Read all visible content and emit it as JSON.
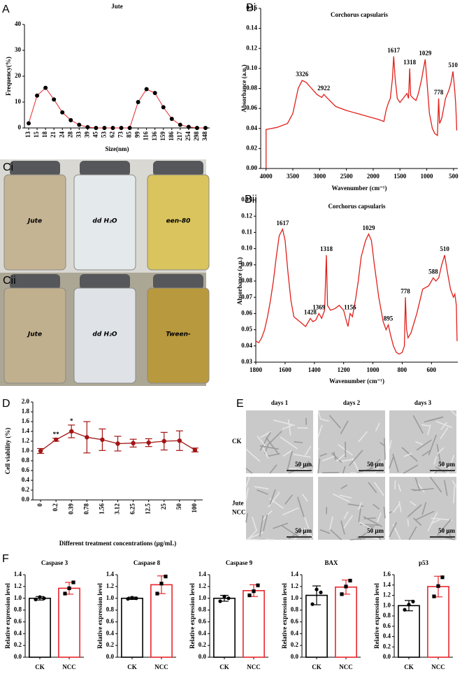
{
  "chart_data": [
    {
      "type": "line",
      "panel": "A",
      "title": "Jute",
      "xlabel": "Size(nm)",
      "ylabel": "Frequency(%)",
      "categories": [
        "13",
        "15",
        "18",
        "21",
        "24",
        "28",
        "33",
        "39",
        "45",
        "53",
        "62",
        "73",
        "85",
        "99",
        "116",
        "136",
        "159",
        "186",
        "217",
        "254",
        "298",
        "348"
      ],
      "values": [
        1.8,
        12.5,
        15.5,
        11,
        6,
        3,
        1.2,
        0.3,
        0,
        0,
        0,
        0,
        0,
        10,
        15,
        13.5,
        8,
        3.5,
        1.2,
        0.4,
        0,
        0
      ],
      "color": "#e8262b",
      "marker_color": "#000000",
      "ylim": [
        0,
        40
      ],
      "yticks": [
        0,
        10,
        20,
        30,
        40
      ]
    },
    {
      "type": "line",
      "panel": "Bi",
      "title": "Corchorus capsularis",
      "xlabel": "Wavenumber (cm⁻¹)",
      "ylabel": "Absorbance (a.u.)",
      "x": [
        4000,
        4000,
        3800,
        3600,
        3500,
        3400,
        3326,
        3250,
        3150,
        3050,
        2960,
        2922,
        2850,
        2700,
        2500,
        2300,
        2100,
        1900,
        1800,
        1760,
        1720,
        1680,
        1640,
        1617,
        1590,
        1550,
        1500,
        1428,
        1369,
        1340,
        1318,
        1300,
        1250,
        1200,
        1156,
        1100,
        1060,
        1029,
        1000,
        950,
        895,
        850,
        800,
        778,
        760,
        720,
        650,
        588,
        550,
        510,
        480,
        460,
        450,
        440
      ],
      "values": [
        0,
        0.039,
        0.041,
        0.045,
        0.055,
        0.08,
        0.088,
        0.086,
        0.08,
        0.074,
        0.071,
        0.074,
        0.07,
        0.062,
        0.058,
        0.055,
        0.052,
        0.049,
        0.047,
        0.058,
        0.065,
        0.07,
        0.09,
        0.112,
        0.09,
        0.07,
        0.066,
        0.071,
        0.075,
        0.07,
        0.1,
        0.073,
        0.07,
        0.068,
        0.075,
        0.088,
        0.1,
        0.109,
        0.09,
        0.055,
        0.04,
        0.035,
        0.033,
        0.07,
        0.045,
        0.05,
        0.07,
        0.078,
        0.085,
        0.097,
        0.08,
        0.065,
        0.053,
        0.038
      ],
      "color": "#e0201b",
      "xlim": [
        4100,
        420
      ],
      "xticks": [
        4000,
        3500,
        3000,
        2500,
        2000,
        1500,
        1000,
        500
      ],
      "ylim": [
        0,
        0.16
      ],
      "yticks": [
        {
          "value": 0,
          "label": "0.00"
        },
        0.02,
        0.04,
        0.06,
        0.08,
        {
          "value": 0.1,
          "label": "0.10"
        },
        0.12,
        0.14,
        0.16
      ],
      "annotations": [
        {
          "text": "3326",
          "x": 3326,
          "y": 0.088
        },
        {
          "text": "2922",
          "x": 2922,
          "y": 0.074
        },
        {
          "text": "1617",
          "x": 1617,
          "y": 0.112
        },
        {
          "text": "1318",
          "x": 1318,
          "y": 0.1
        },
        {
          "text": "1029",
          "x": 1029,
          "y": 0.109
        },
        {
          "text": "778",
          "x": 778,
          "y": 0.07
        },
        {
          "text": "510",
          "x": 510,
          "y": 0.097
        }
      ]
    },
    {
      "type": "line",
      "panel": "Bii",
      "title": "Corchorus capsularis",
      "xlabel": "Wavenumber (cm⁻¹)",
      "ylabel": "Absorbance (a.u.)",
      "x": [
        1800,
        1780,
        1760,
        1740,
        1720,
        1700,
        1680,
        1660,
        1640,
        1617,
        1600,
        1580,
        1560,
        1540,
        1500,
        1460,
        1440,
        1428,
        1410,
        1390,
        1369,
        1350,
        1330,
        1318,
        1310,
        1290,
        1260,
        1230,
        1200,
        1180,
        1170,
        1156,
        1140,
        1120,
        1100,
        1080,
        1050,
        1029,
        1010,
        990,
        960,
        930,
        910,
        895,
        880,
        860,
        840,
        820,
        800,
        785,
        778,
        770,
        760,
        740,
        700,
        660,
        620,
        600,
        588,
        570,
        550,
        530,
        510,
        490,
        470,
        450,
        440,
        430,
        425
      ],
      "values": [
        0.043,
        0.042,
        0.045,
        0.05,
        0.058,
        0.068,
        0.08,
        0.095,
        0.108,
        0.112,
        0.105,
        0.085,
        0.068,
        0.058,
        0.055,
        0.052,
        0.055,
        0.057,
        0.055,
        0.056,
        0.06,
        0.057,
        0.062,
        0.096,
        0.065,
        0.062,
        0.063,
        0.065,
        0.062,
        0.055,
        0.052,
        0.06,
        0.058,
        0.068,
        0.08,
        0.095,
        0.105,
        0.109,
        0.105,
        0.09,
        0.07,
        0.055,
        0.05,
        0.053,
        0.047,
        0.04,
        0.036,
        0.035,
        0.036,
        0.04,
        0.07,
        0.05,
        0.045,
        0.048,
        0.06,
        0.075,
        0.077,
        0.08,
        0.082,
        0.08,
        0.082,
        0.09,
        0.096,
        0.085,
        0.075,
        0.07,
        0.072,
        0.065,
        0.043
      ],
      "color": "#e0201b",
      "xlim": [
        1800,
        420
      ],
      "xticks": [
        1800,
        1600,
        1400,
        1200,
        1000,
        800,
        600
      ],
      "ylim": [
        0.03,
        0.13
      ],
      "yticks": [
        0.03,
        0.04,
        0.05,
        0.06,
        0.07,
        0.08,
        0.09,
        {
          "value": 0.1,
          "label": "0.10"
        },
        0.11,
        0.12,
        0.13
      ],
      "annotations": [
        {
          "text": "1617",
          "x": 1617,
          "y": 0.112
        },
        {
          "text": "1428",
          "x": 1428,
          "y": 0.057
        },
        {
          "text": "1369",
          "x": 1369,
          "y": 0.06
        },
        {
          "text": "1318",
          "x": 1318,
          "y": 0.096
        },
        {
          "text": "1156",
          "x": 1156,
          "y": 0.06
        },
        {
          "text": "1029",
          "x": 1029,
          "y": 0.109
        },
        {
          "text": "895",
          "x": 895,
          "y": 0.053
        },
        {
          "text": "778",
          "x": 778,
          "y": 0.07
        },
        {
          "text": "588",
          "x": 588,
          "y": 0.082
        },
        {
          "text": "510",
          "x": 510,
          "y": 0.096
        }
      ]
    },
    {
      "type": "errorline",
      "panel": "D",
      "xlabel": "Different treatment concentrations (μg/mL)",
      "ylabel": "Cell viability (%)",
      "categories": [
        "0",
        "0.2",
        "0.39",
        "0.78",
        "1.56",
        "3.12",
        "6.25",
        "12.5",
        "25",
        "50",
        "100"
      ],
      "values": [
        1.0,
        1.23,
        1.4,
        1.28,
        1.23,
        1.15,
        1.16,
        1.17,
        1.2,
        1.21,
        1.02
      ],
      "errors": [
        0.05,
        0.03,
        0.13,
        0.32,
        0.22,
        0.15,
        0.08,
        0.08,
        0.18,
        0.2,
        0.04
      ],
      "significance": [
        null,
        "**",
        "*",
        null,
        null,
        null,
        null,
        null,
        null,
        null,
        null
      ],
      "color": "#a31515",
      "ylim": [
        0,
        2
      ],
      "yticks": [
        {
          "value": 0,
          "label": "0.0"
        },
        0.2,
        0.4,
        0.6,
        0.8,
        {
          "value": 1,
          "label": "1.0"
        },
        1.2,
        1.4,
        1.6,
        1.8,
        {
          "value": 2,
          "label": "2.0"
        }
      ]
    },
    {
      "type": "bar",
      "panel": "F",
      "title": "Caspase 3",
      "ylabel": "Relative expression level",
      "categories": [
        "CK",
        "NCC"
      ],
      "values": [
        1.0,
        1.17
      ],
      "errors": [
        0.03,
        0.1
      ],
      "points": [
        [
          0.98,
          1.02,
          1.0
        ],
        [
          1.08,
          1.17,
          1.27
        ]
      ],
      "colors": [
        "#000000",
        "#e8262b"
      ],
      "ylim": [
        0,
        1.4
      ],
      "yticks": [
        {
          "value": 0,
          "label": "0.0"
        },
        0.2,
        0.4,
        0.6,
        0.8,
        {
          "value": 1,
          "label": "1.0"
        },
        1.2,
        1.4
      ]
    },
    {
      "type": "bar",
      "title": "Caspase 8",
      "ylabel": "Relative expression level",
      "categories": [
        "CK",
        "NCC"
      ],
      "values": [
        1.0,
        1.23
      ],
      "errors": [
        0.02,
        0.15
      ],
      "points": [
        [
          0.99,
          1.01,
          1.0
        ],
        [
          1.08,
          1.25,
          1.37
        ]
      ],
      "colors": [
        "#000000",
        "#e8262b"
      ],
      "ylim": [
        0,
        1.4
      ],
      "yticks": [
        {
          "value": 0,
          "label": "0.0"
        },
        0.2,
        0.4,
        0.6,
        0.8,
        {
          "value": 1,
          "label": "1.0"
        },
        1.2,
        1.4
      ]
    },
    {
      "type": "bar",
      "title": "Caspase 9",
      "ylabel": "Relative expression level",
      "categories": [
        "CK",
        "NCC"
      ],
      "values": [
        1.0,
        1.13
      ],
      "errors": [
        0.05,
        0.1
      ],
      "points": [
        [
          0.95,
          1.03,
          1.0
        ],
        [
          1.05,
          1.12,
          1.22
        ]
      ],
      "colors": [
        "#000000",
        "#e8262b"
      ],
      "ylim": [
        0,
        1.4
      ],
      "yticks": [
        {
          "value": 0,
          "label": "0.0"
        },
        0.2,
        0.4,
        0.6,
        0.8,
        {
          "value": 1,
          "label": "1.0"
        },
        1.2,
        1.4
      ]
    },
    {
      "type": "bar",
      "title": "BAX",
      "ylabel": "Relative expression level",
      "categories": [
        "CK",
        "NCC"
      ],
      "values": [
        1.05,
        1.19
      ],
      "errors": [
        0.16,
        0.12
      ],
      "points": [
        [
          0.9,
          1.15,
          1.1
        ],
        [
          1.07,
          1.2,
          1.3
        ]
      ],
      "colors": [
        "#000000",
        "#e8262b"
      ],
      "ylim": [
        0,
        1.4
      ],
      "yticks": [
        {
          "value": 0,
          "label": "0.0"
        },
        0.2,
        0.4,
        0.6,
        0.8,
        {
          "value": 1,
          "label": "1.0"
        },
        1.2,
        1.4
      ]
    },
    {
      "type": "bar",
      "title": "p53",
      "ylabel": "Relative expression level",
      "categories": [
        "CK",
        "NCC"
      ],
      "values": [
        1.0,
        1.37
      ],
      "errors": [
        0.1,
        0.2
      ],
      "points": [
        [
          0.92,
          1.02,
          1.08
        ],
        [
          1.18,
          1.38,
          1.55
        ]
      ],
      "colors": [
        "#000000",
        "#e8262b"
      ],
      "ylim": [
        0,
        1.6
      ],
      "yticks": [
        {
          "value": 0,
          "label": "0.0"
        },
        0.2,
        0.4,
        0.6,
        0.8,
        {
          "value": 1,
          "label": "1.0"
        },
        1.2,
        1.4,
        1.6
      ]
    }
  ],
  "photos": {
    "vials": [
      {
        "panel": "Ci",
        "labels": [
          "Jute",
          "dd H₂O",
          "een-80"
        ]
      },
      {
        "panel": "Cii",
        "labels": [
          "Jute",
          "dd H₂O",
          "Tween-"
        ]
      }
    ],
    "cells": {
      "panel": "E",
      "columns": [
        "days 1",
        "days 2",
        "days 3"
      ],
      "rows": [
        [
          "CK"
        ],
        [
          "Jute",
          "NCC"
        ]
      ],
      "scale_bar": "50 μm"
    }
  }
}
